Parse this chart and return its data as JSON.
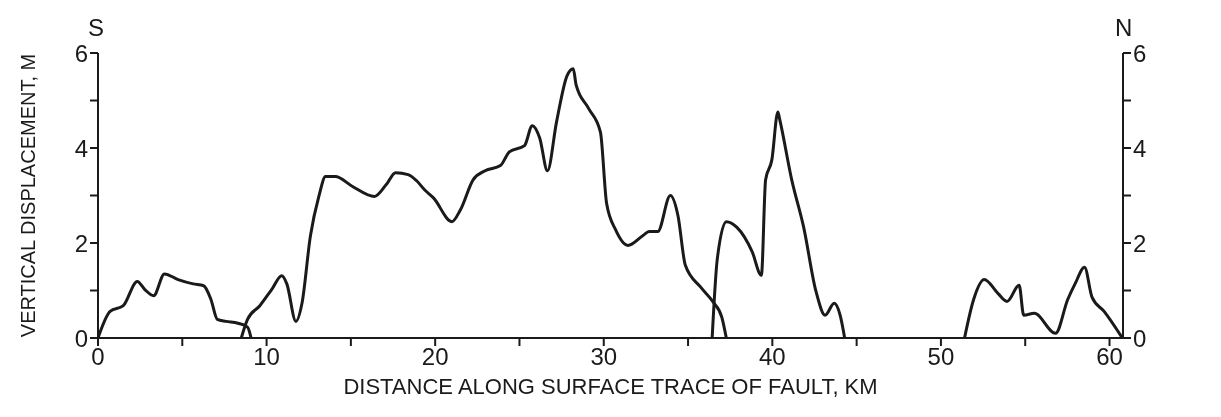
{
  "chart_data": {
    "type": "line",
    "xlabel": "DISTANCE ALONG SURFACE TRACE OF FAULT, KM",
    "ylabel": "VERTICAL DISPLACEMENT, M",
    "annotations": [
      "S",
      "N"
    ],
    "xlim": [
      0,
      60.8
    ],
    "xticks": [
      0,
      {
        "value": 5,
        "label": null
      },
      10,
      {
        "value": 15,
        "label": null
      },
      20,
      {
        "value": 25,
        "label": null
      },
      30,
      {
        "value": 35,
        "label": null
      },
      40,
      {
        "value": 45,
        "label": null
      },
      50,
      {
        "value": 55,
        "label": null
      },
      60
    ],
    "ylim": [
      0,
      6
    ],
    "yticks": [
      0,
      {
        "value": 1,
        "label": null
      },
      2,
      {
        "value": 3,
        "label": null
      },
      4,
      {
        "value": 5,
        "label": null
      },
      6
    ],
    "y2lim": [
      0,
      6
    ],
    "y2ticks": [
      0,
      {
        "value": 1,
        "label": null
      },
      2,
      {
        "value": 3,
        "label": null
      },
      4,
      {
        "value": 5,
        "label": null
      },
      6
    ],
    "grid": false,
    "legend": false,
    "marker": "none",
    "line_style": "solid",
    "series": [
      {
        "color": "#1a1a1a",
        "x": [
          0,
          0.72,
          1.5,
          2.33,
          2.78,
          3.3,
          3.94,
          4.75,
          5.65,
          6.27,
          6.7,
          7.08,
          7.6,
          8.3,
          8.87,
          9.08
        ],
        "values": [
          0,
          0.56,
          0.68,
          1.19,
          1.02,
          0.89,
          1.35,
          1.23,
          1.14,
          1.1,
          0.81,
          0.39,
          0.35,
          0.31,
          0.23,
          0
        ]
      },
      {
        "color": "#1a1a1a",
        "x": [
          8.5,
          8.87,
          9.6,
          10.3,
          10.9,
          11.2,
          11.74,
          12.1,
          12.6,
          13.1,
          13.5,
          14.07,
          15.1,
          16.4,
          17.1,
          17.65,
          18.4,
          18.9,
          19.37,
          19.9,
          20.99,
          21.5,
          22.25,
          22.96,
          23.87,
          24.4,
          25.3,
          25.76,
          26.2,
          26.66,
          27.2,
          27.82,
          28.19,
          28.36,
          29.09,
          29.8,
          30.17,
          30.7,
          31.43,
          32.33,
          32.69,
          33.2,
          33.95,
          34.4,
          34.84,
          35.75,
          36.46,
          37.0,
          37.27
        ],
        "values": [
          0,
          0.39,
          0.68,
          1.02,
          1.31,
          1.14,
          0.35,
          0.73,
          2.15,
          2.98,
          3.4,
          3.4,
          3.19,
          2.98,
          3.23,
          3.48,
          3.44,
          3.31,
          3.12,
          2.95,
          2.45,
          2.7,
          3.33,
          3.52,
          3.63,
          3.92,
          4.05,
          4.47,
          4.21,
          3.52,
          4.55,
          5.52,
          5.67,
          5.33,
          4.84,
          4.34,
          2.83,
          2.28,
          1.95,
          2.16,
          2.24,
          2.24,
          3.0,
          2.58,
          1.53,
          1.07,
          0.77,
          0.44,
          0
        ]
      },
      {
        "color": "#1a1a1a",
        "x": [
          36.43,
          36.73,
          37.27,
          37.9,
          38.8,
          39.35,
          39.6,
          39.97,
          40.33,
          40.42,
          41.15,
          41.86,
          42.59,
          43.13,
          43.67,
          44.02,
          44.29
        ],
        "values": [
          0,
          1.65,
          2.45,
          2.33,
          1.82,
          1.32,
          3.33,
          3.75,
          4.76,
          4.63,
          3.33,
          2.33,
          0.98,
          0.48,
          0.73,
          0.48,
          0
        ]
      },
      {
        "color": "#1a1a1a",
        "x": [
          51.4,
          51.94,
          52.57,
          53.38,
          53.92,
          54.64,
          54.91,
          55.54,
          56.8,
          57.52,
          57.97,
          58.52,
          58.96,
          59.68,
          60.76
        ],
        "values": [
          0,
          0.81,
          1.23,
          0.94,
          0.77,
          1.11,
          0.48,
          0.52,
          0.1,
          0.81,
          1.15,
          1.49,
          0.86,
          0.56,
          0
        ]
      }
    ]
  }
}
